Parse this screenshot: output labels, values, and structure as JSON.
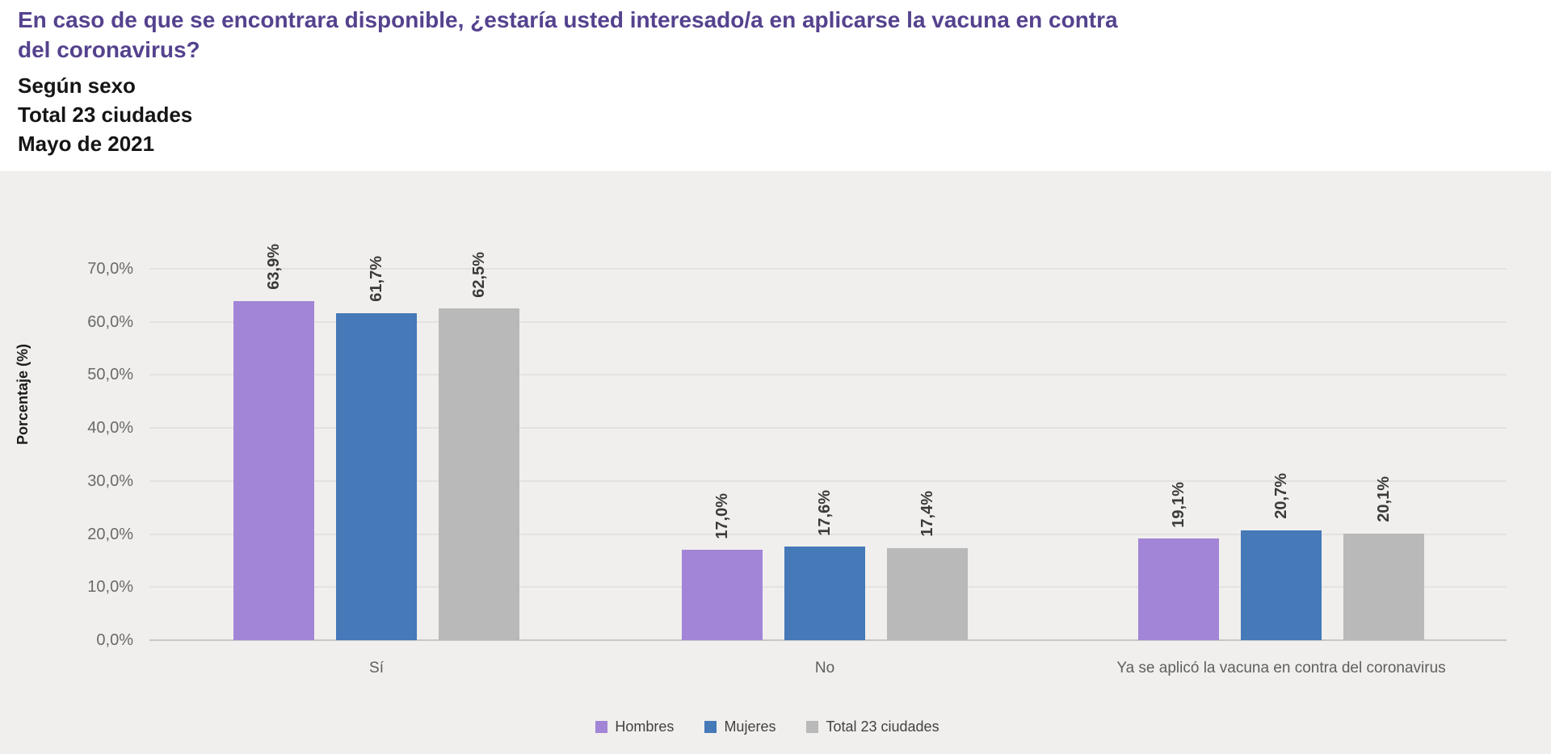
{
  "header": {
    "title": "En caso de que se encontrara disponible, ¿estaría usted interesado/a en aplicarse la vacuna en contra del coronavirus?",
    "subtitle_lines": [
      "Según sexo",
      "Total 23 ciudades",
      "Mayo de 2021"
    ]
  },
  "colors": {
    "title_purple": "#55428e",
    "panel_background": "#f0efed",
    "gridline": "#e3e2e0",
    "axis_line": "#c9c8c6",
    "series_hombres": "#a285d6",
    "series_mujeres": "#4579b8",
    "series_total": "#b9b9b9"
  },
  "chart_data": {
    "type": "bar",
    "title": "En caso de que se encontrara disponible, ¿estaría usted interesado/a en aplicarse la vacuna en contra del coronavirus?",
    "subtitle": "Según sexo — Total 23 ciudades — Mayo de 2021",
    "categories": [
      "Sí",
      "No",
      "Ya se aplicó la vacuna en contra del coronavirus"
    ],
    "series": [
      {
        "key": "hombres",
        "name": "Hombres",
        "color": "#a285d6",
        "values": [
          63.9,
          17.0,
          19.1
        ],
        "labels": [
          "63,9%",
          "17,0%",
          "19,1%"
        ]
      },
      {
        "key": "mujeres",
        "name": "Mujeres",
        "color": "#4579b8",
        "values": [
          61.7,
          17.6,
          20.7
        ],
        "labels": [
          "61,7%",
          "17,6%",
          "20,7%"
        ]
      },
      {
        "key": "total",
        "name": "Total 23 ciudades",
        "color": "#b9b9b9",
        "values": [
          62.5,
          17.4,
          20.1
        ],
        "labels": [
          "62,5%",
          "17,4%",
          "20,1%"
        ]
      }
    ],
    "xlabel": "",
    "ylabel": "Porcentaje (%)",
    "ylim": [
      0,
      70
    ],
    "yticks": {
      "values": [
        0,
        10,
        20,
        30,
        40,
        50,
        60,
        70
      ],
      "labels": [
        "0,0%",
        "10,0%",
        "20,0%",
        "30,0%",
        "40,0%",
        "50,0%",
        "60,0%",
        "70,0%"
      ]
    },
    "grid": true,
    "legend_position": "bottom"
  }
}
